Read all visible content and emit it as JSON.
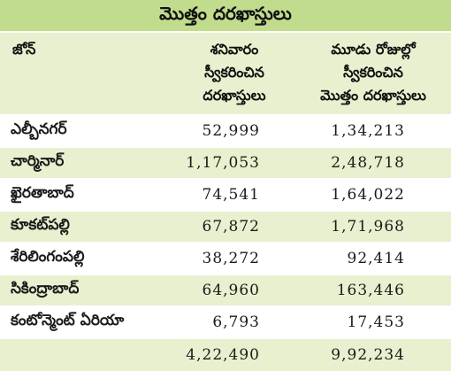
{
  "title": "మొత్తం దరఖాస్తులు",
  "header": {
    "zone": "జోన్",
    "saturday_lines": [
      "శనివారం",
      "స్వీకరించిన",
      "దరఖాస్తులు"
    ],
    "total_lines": [
      "మూడు రోజుల్లో",
      "స్వీకరించిన",
      "మొత్తం దరఖాస్తులు"
    ]
  },
  "rows": [
    {
      "zone": "ఎల్బీనగర్",
      "saturday": "52,999",
      "total": "1,34,213"
    },
    {
      "zone": "చార్మినార్",
      "saturday": "1,17,053",
      "total": "2,48,718"
    },
    {
      "zone": "ఖైరతాబాద్",
      "saturday": "74,541",
      "total": "1,64,022"
    },
    {
      "zone": "కూకట్‌పల్లి",
      "saturday": "67,872",
      "total": "1,71,968"
    },
    {
      "zone": "శేరిలింగంపల్లి",
      "saturday": "38,272",
      "total": "92,414"
    },
    {
      "zone": "సికింద్రాబాద్",
      "saturday": "64,960",
      "total": "163,446"
    },
    {
      "zone": "కంటోన్మెంట్ ఏరియా",
      "saturday": "6,793",
      "total": "17,453"
    },
    {
      "zone": "",
      "saturday": "4,22,490",
      "total": "9,92,234"
    }
  ],
  "colors": {
    "title_bg": "#c2dc8e",
    "band_bg": "#e7f1cf",
    "text": "#111111"
  }
}
